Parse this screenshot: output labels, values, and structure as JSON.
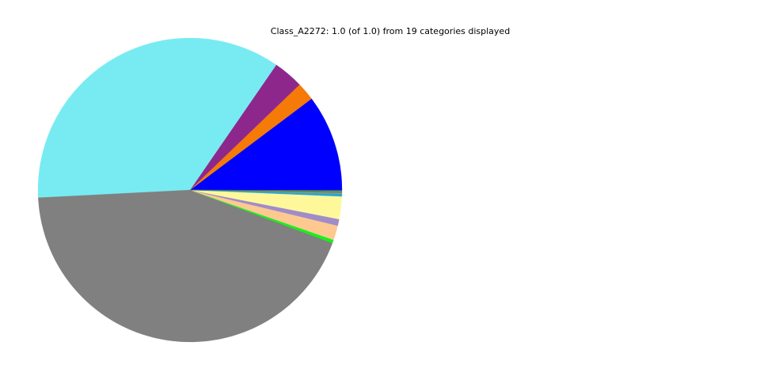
{
  "chart_data": {
    "type": "pie",
    "title": "Class_A2272: 1.0 (of 1.0) from 19 categories displayed",
    "start_angle_deg": 0,
    "direction": "counterclockwise",
    "legend": "none",
    "slices": [
      {
        "value": 0.1025,
        "color": "#0000ff"
      },
      {
        "value": 0.0194,
        "color": "#f57a08"
      },
      {
        "value": 0.032,
        "color": "#8e278c"
      },
      {
        "value": 0.354,
        "color": "#78ebf2"
      },
      {
        "value": 0.435,
        "color": "#808080"
      },
      {
        "value": 0.0035,
        "color": "#17f01a"
      },
      {
        "value": 0.0155,
        "color": "#fdc991"
      },
      {
        "value": 0.007,
        "color": "#a08cc8"
      },
      {
        "value": 0.024,
        "color": "#fff89b"
      },
      {
        "value": 0.0022,
        "color": "#1fa9e0"
      },
      {
        "value": 0.0005,
        "color": "#2aa198"
      },
      {
        "value": 0.0005,
        "color": "#b0a080"
      },
      {
        "value": 0.0005,
        "color": "#7f8f7f"
      },
      {
        "value": 0.0005,
        "color": "#3f7f5f"
      },
      {
        "value": 0.0005,
        "color": "#5f9f9f"
      },
      {
        "value": 0.0005,
        "color": "#9f7f3f"
      },
      {
        "value": 0.0005,
        "color": "#2f6f4f"
      },
      {
        "value": 0.0005,
        "color": "#4f8faf"
      },
      {
        "value": 0.0005,
        "color": "#1f5f3f"
      }
    ]
  }
}
